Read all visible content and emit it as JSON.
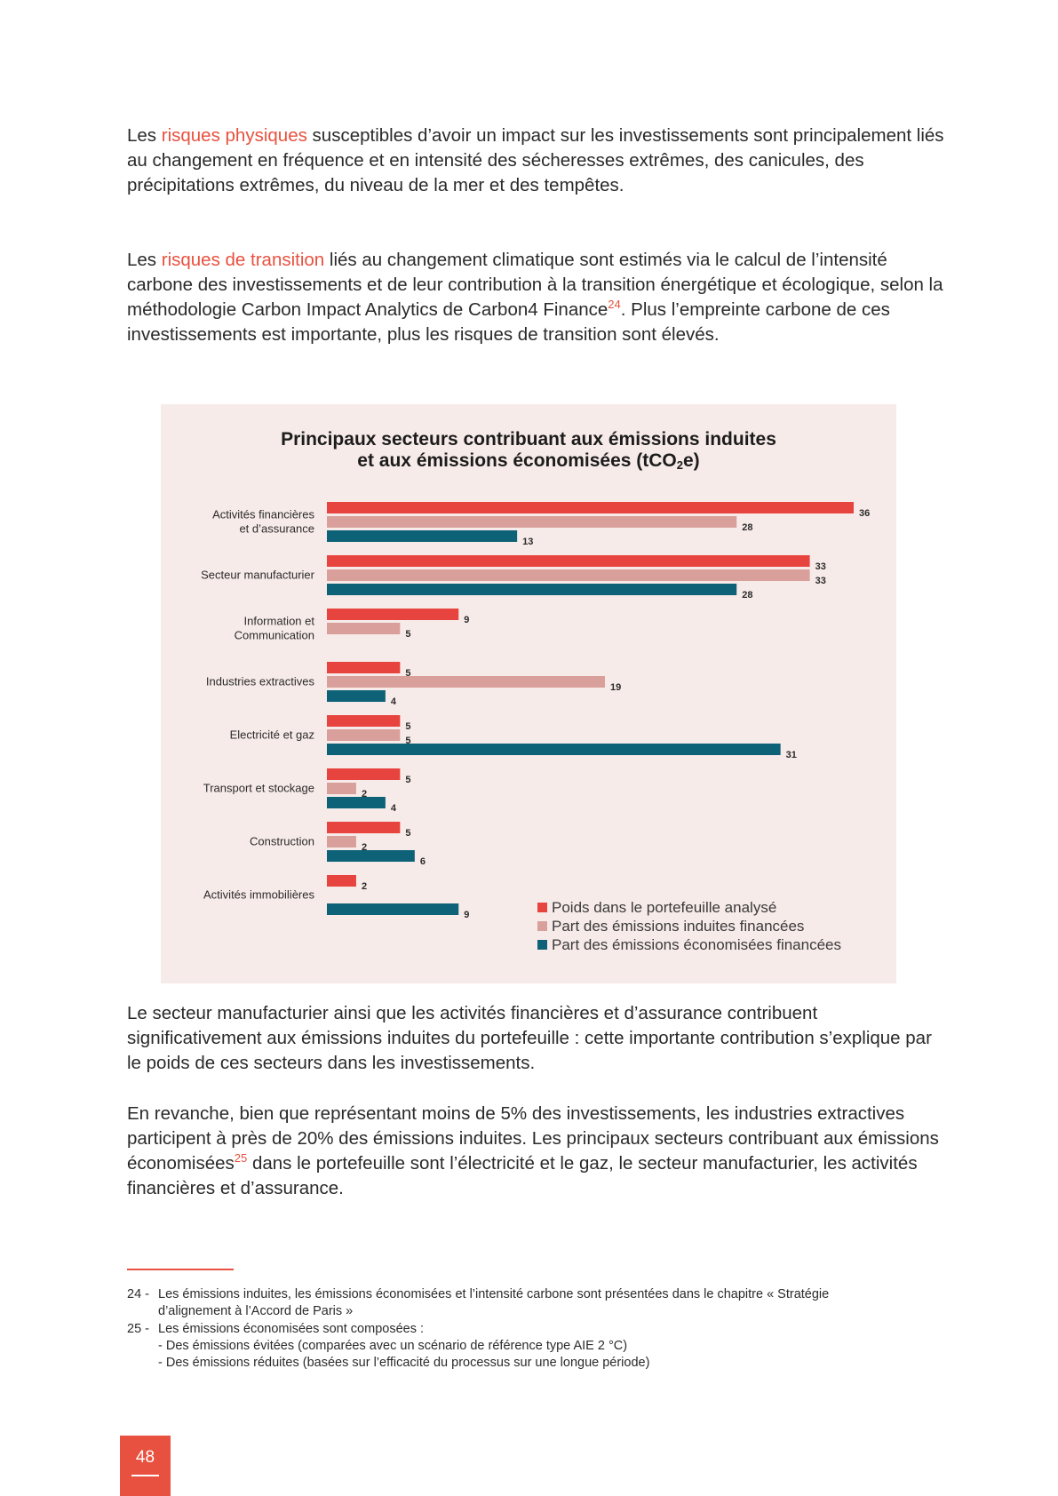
{
  "paragraph1": {
    "before": "Les ",
    "highlight": "risques physiques",
    "after": " susceptibles d’avoir un impact sur les investissements sont principalement liés au changement en fréquence et en intensité des sécheresses extrêmes, des canicules, des précipitations extrêmes, du niveau de la mer et des tempêtes."
  },
  "paragraph2": {
    "before": "Les ",
    "highlight": "risques de transition",
    "middle": " liés au changement climatique sont estimés via le calcul de l’intensité carbone des investissements et de leur contribution à la transition énergétique et écologique, selon la méthodologie Carbon Impact Analytics de Carbon4 Finance",
    "footnote_ref": "24",
    "after": ". Plus l’empreinte carbone de ces investissements est importante, plus les risques de transition sont élevés."
  },
  "chart_data": {
    "type": "bar",
    "orientation": "horizontal",
    "title_line1": "Principaux secteurs contribuant aux émissions induites",
    "title_line2_main": "et aux émissions économisées (tCO",
    "title_line2_sub": "2",
    "title_line2_end": "e)",
    "categories": [
      {
        "label": [
          "Activités financières",
          "et d’assurance"
        ]
      },
      {
        "label": [
          "Secteur manufacturier"
        ]
      },
      {
        "label": [
          "Information et",
          "Communication"
        ]
      },
      {
        "label": [
          "Industries extractives"
        ]
      },
      {
        "label": [
          "Electricité et gaz"
        ]
      },
      {
        "label": [
          "Transport et stockage"
        ]
      },
      {
        "label": [
          "Construction"
        ]
      },
      {
        "label": [
          "Activités immobilières"
        ]
      }
    ],
    "series": [
      {
        "name": "Poids dans le portefeuille analysé",
        "color": "#e8443f",
        "values": [
          36,
          33,
          9,
          5,
          5,
          5,
          5,
          2
        ]
      },
      {
        "name": "Part des émissions induites financées",
        "color": "#d9a09b",
        "values": [
          28,
          33,
          5,
          19,
          5,
          2,
          2,
          null
        ]
      },
      {
        "name": "Part des émissions économisées financées",
        "color": "#0e6277",
        "values": [
          13,
          28,
          null,
          4,
          31,
          4,
          6,
          9
        ]
      }
    ],
    "xlim": [
      0,
      36
    ],
    "grid": false,
    "legend_position": "bottom-right"
  },
  "paragraph3": {
    "text": "Le secteur manufacturier ainsi que les activités financières et d’assurance contribuent significativement aux émissions induites du portefeuille : cette importante contribution s’explique par le poids de ces secteurs dans les investissements."
  },
  "paragraph4": {
    "before": "En revanche, bien que représentant moins de 5% des investissements, les industries extractives participent à près de 20% des émissions induites. Les principaux secteurs contribuant aux émissions économisées",
    "footnote_ref": "25",
    "after": " dans le portefeuille sont l’électricité et le gaz, le secteur manufacturier, les activités financières et d’assurance."
  },
  "footnotes": {
    "fn24_num": "24 -",
    "fn24_line1": "Les émissions induites, les émissions économisées et l’intensité carbone sont présentées dans le chapitre « Stratégie",
    "fn24_line2": "d’alignement à l’Accord de Paris »",
    "fn25_num": "25 -",
    "fn25_line1": "Les émissions économisées sont composées :",
    "fn25_line2": "- Des émissions évitées (comparées avec un scénario de référence type AIE 2 °C)",
    "fn25_line3": "- Des émissions réduites (basées sur l’efficacité du processus sur une longue période)"
  },
  "page_number": "48"
}
